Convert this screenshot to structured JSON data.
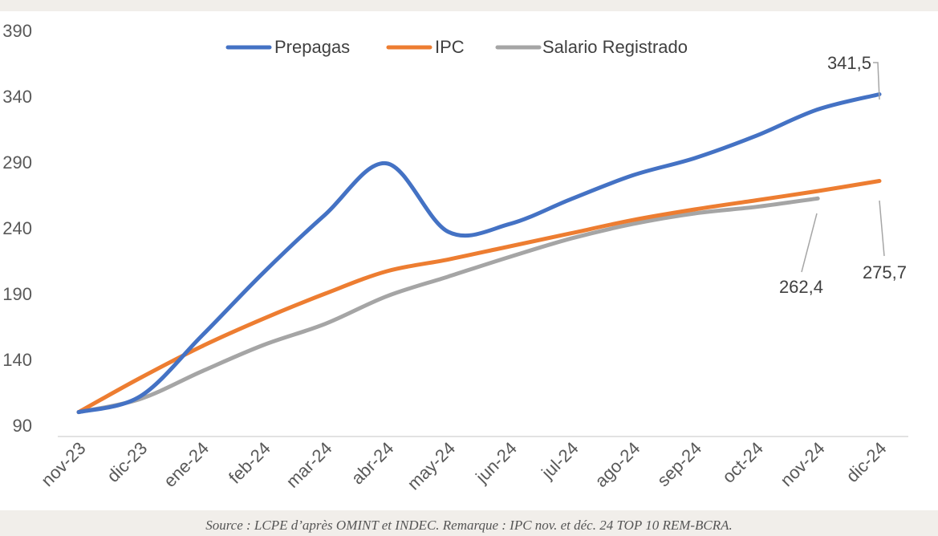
{
  "chart_data": {
    "type": "line",
    "categories": [
      "nov-23",
      "dic-23",
      "ene-24",
      "feb-24",
      "mar-24",
      "abr-24",
      "may-24",
      "jun-24",
      "jul-24",
      "ago-24",
      "sep-24",
      "oct-24",
      "nov-24",
      "dic-24"
    ],
    "series": [
      {
        "name": "Prepagas",
        "color": "#4472c4",
        "values": [
          100,
          112,
          158,
          206,
          250,
          289,
          237,
          243,
          262,
          280,
          293,
          310,
          330,
          341.5
        ]
      },
      {
        "name": "IPC",
        "color": "#ed7d31",
        "values": [
          100,
          126,
          150,
          171,
          190,
          207,
          216,
          226,
          236,
          246,
          254,
          261,
          268,
          275.7
        ]
      },
      {
        "name": "Salario Registrado",
        "color": "#a5a5a5",
        "values": [
          100,
          110,
          131,
          151,
          167,
          188,
          203,
          218,
          232,
          243,
          251,
          256,
          262.4,
          null
        ]
      }
    ],
    "yticks": [
      "390",
      "340",
      "290",
      "240",
      "190",
      "140",
      "90"
    ],
    "ylim": [
      90,
      390
    ],
    "data_labels": [
      {
        "series": "Prepagas",
        "category": "dic-24",
        "text": "341,5"
      },
      {
        "series": "IPC",
        "category": "dic-24",
        "text": "275,7"
      },
      {
        "series": "Salario Registrado",
        "category": "nov-24",
        "text": "262,4"
      }
    ],
    "legend_position": "top",
    "grid": false
  },
  "caption": "Source : LCPE d’après OMINT et INDEC. Remarque : IPC nov. et déc. 24 TOP 10 REM-BCRA."
}
